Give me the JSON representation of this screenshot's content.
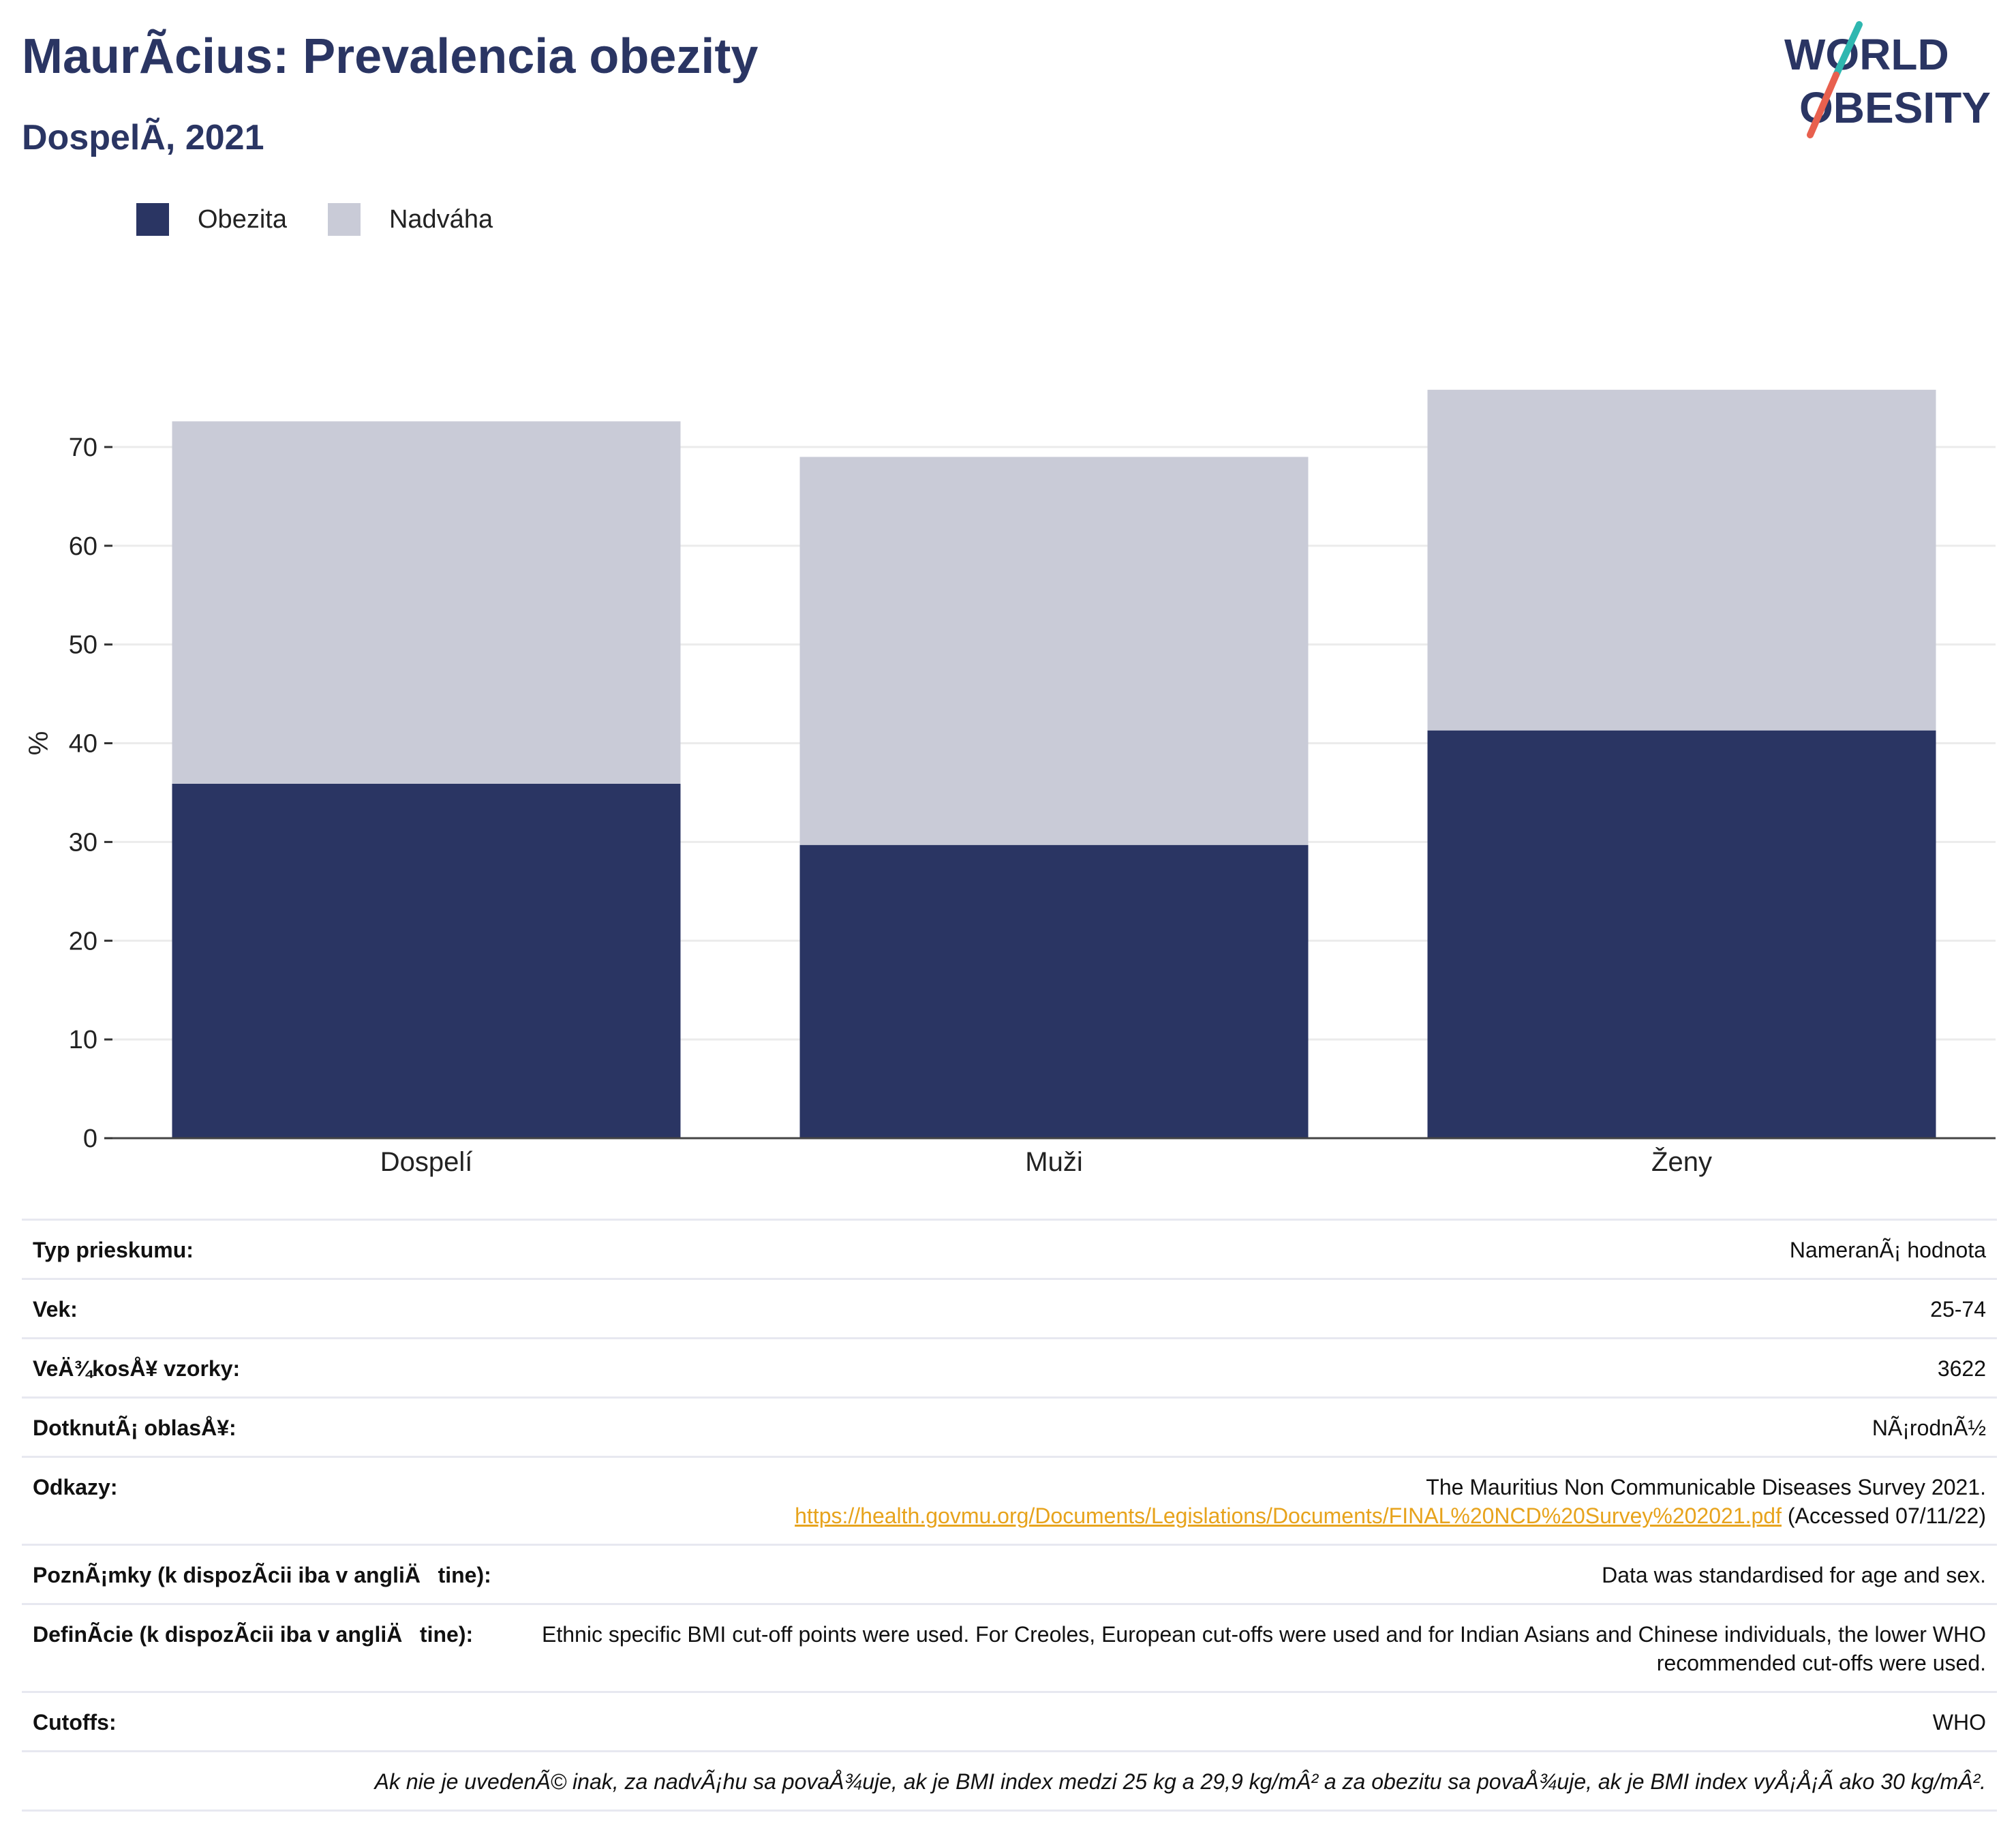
{
  "header": {
    "title": "MaurÃcius: Prevalencia obezity",
    "subtitle": "DospelÃ, 2021"
  },
  "logo": {
    "line1": "WORLD",
    "line2": "OBESITY"
  },
  "colors": {
    "obesity": "#2a3563",
    "overweight": "#c9cbd7",
    "title": "#2a3563",
    "link": "#e7a31c"
  },
  "chart_data": {
    "type": "bar",
    "stacked": true,
    "categories": [
      "Dospelí",
      "Muži",
      "Ženy"
    ],
    "series": [
      {
        "name": "Obezita",
        "values": [
          35.9,
          29.7,
          41.3
        ],
        "color": "#2a3563"
      },
      {
        "name": "Nadváha",
        "values": [
          36.7,
          39.3,
          34.5
        ],
        "color": "#c9cbd7"
      }
    ],
    "ylabel": "%",
    "xlabel": "",
    "ylim": [
      0,
      78
    ],
    "yticks": [
      0,
      10,
      20,
      30,
      40,
      50,
      60,
      70
    ],
    "grid": true,
    "legend": "top-left"
  },
  "info": {
    "rows": [
      {
        "label": "Typ prieskumu:",
        "value": "NameranÃ¡ hodnota"
      },
      {
        "label": "Vek:",
        "value": "25-74"
      },
      {
        "label": "VeÄ¾kosÅ¥ vzorky:",
        "value": "3622"
      },
      {
        "label": "DotknutÃ¡ oblasÅ¥:",
        "value": "NÃ¡rodnÃ½"
      }
    ],
    "references": {
      "label": "Odkazy:",
      "text": "The Mauritius Non Communicable Diseases Survey 2021.",
      "url": "https://health.govmu.org/Documents/Legislations/Documents/FINAL%20NCD%20Survey%202021.pdf",
      "accessed": "(Accessed 07/11/22)"
    },
    "rows2": [
      {
        "label": "PoznÃ¡mky (k dispozÃcii iba v angliÄtine):",
        "value": "Data was standardised for age and sex."
      },
      {
        "label": "DefinÃcie (k dispozÃcii iba v angliÄtine):",
        "value": "Ethnic specific BMI cut-off points were used. For Creoles, European cut-offs were used and for Indian Asians and Chinese individuals, the lower WHO recommended cut-offs were used."
      },
      {
        "label": "Cutoffs:",
        "value": "WHO"
      }
    ],
    "footnote": "Ak nie je uvedenÃ© inak, za nadvÃ¡hu sa povaÅ¾uje, ak je BMI index medzi 25 kg a 29,9 kg/mÂ² a za obezitu sa povaÅ¾uje, ak je BMI index vyÅ¡Å¡Ã ako 30 kg/mÂ²."
  }
}
